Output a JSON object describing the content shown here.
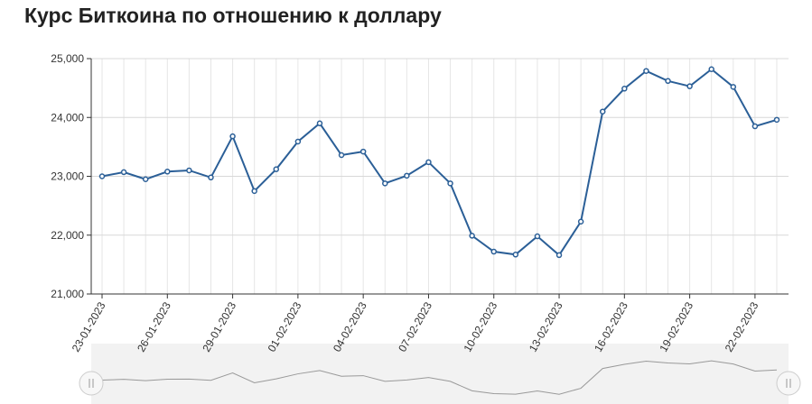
{
  "chart_data": {
    "type": "line",
    "title": "Курс Биткоина по отношению к доллару",
    "categories": [
      "23-01-2023",
      null,
      null,
      "26-01-2023",
      null,
      null,
      "29-01-2023",
      null,
      null,
      "01-02-2023",
      null,
      null,
      "04-02-2023",
      null,
      null,
      "07-02-2023",
      null,
      null,
      "10-02-2023",
      null,
      null,
      "13-02-2023",
      null,
      null,
      "16-02-2023",
      null,
      null,
      "19-02-2023",
      null,
      null,
      "22-02-2023",
      null
    ],
    "series": [
      {
        "color": "#2b5f97",
        "values": [
          23000,
          23070,
          22950,
          23080,
          23100,
          22980,
          23680,
          22750,
          23120,
          23590,
          23900,
          23360,
          23420,
          22880,
          23010,
          23240,
          22880,
          21990,
          21720,
          21670,
          21980,
          21660,
          22230,
          24100,
          24490,
          24790,
          24620,
          24530,
          24820,
          24520,
          23850,
          23960
        ]
      }
    ],
    "ylim": [
      21000,
      25000
    ],
    "yticks": [
      {
        "value": 21000,
        "label": "21,000"
      },
      {
        "value": 22000,
        "label": "22,000"
      },
      {
        "value": 23000,
        "label": "23,000"
      },
      {
        "value": 24000,
        "label": "24,000"
      },
      {
        "value": 25000,
        "label": "25,000"
      }
    ],
    "grid": true
  }
}
